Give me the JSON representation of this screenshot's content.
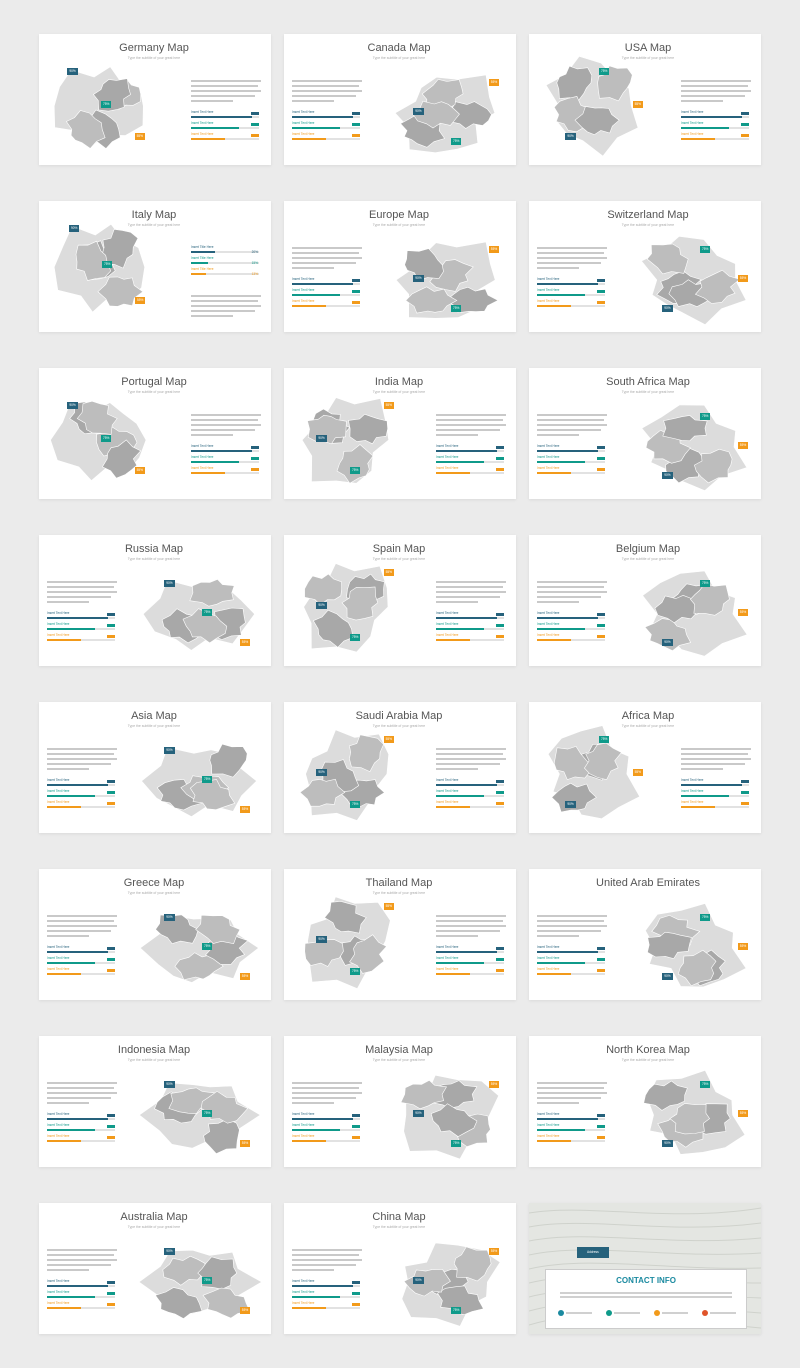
{
  "slides": [
    {
      "title": "Germany Map",
      "subtitle": "Type the subtitle of your great here",
      "layout": "map-left"
    },
    {
      "title": "Canada Map",
      "subtitle": "Type the subtitle of your great here",
      "layout": "map-right"
    },
    {
      "title": "USA Map",
      "subtitle": "Type the subtitle of your great here",
      "layout": "map-left"
    },
    {
      "title": "Italy Map",
      "subtitle": "Type the subtitle of your great here",
      "layout": "map-left"
    },
    {
      "title": "Europe Map",
      "subtitle": "Type the subtitle of your great here",
      "layout": "map-right"
    },
    {
      "title": "Switzerland Map",
      "subtitle": "Type the subtitle of your great here",
      "layout": "map-right"
    },
    {
      "title": "Portugal Map",
      "subtitle": "Type the subtitle of your great here",
      "layout": "map-left"
    },
    {
      "title": "India Map",
      "subtitle": "Type the subtitle of your great here",
      "layout": "map-left"
    },
    {
      "title": "South Africa Map",
      "subtitle": "Type the subtitle of your great here",
      "layout": "map-right"
    },
    {
      "title": "Russia Map",
      "subtitle": "Type the subtitle of your great here",
      "layout": "map-right"
    },
    {
      "title": "Spain Map",
      "subtitle": "Type the subtitle of your great here",
      "layout": "map-left"
    },
    {
      "title": "Belgium Map",
      "subtitle": "Type the subtitle of your great here",
      "layout": "map-right"
    },
    {
      "title": "Asia Map",
      "subtitle": "Type the subtitle of your great here",
      "layout": "map-right"
    },
    {
      "title": "Saudi Arabia Map",
      "subtitle": "Type the subtitle of your great here",
      "layout": "map-left"
    },
    {
      "title": "Africa Map",
      "subtitle": "Type the subtitle of your great here",
      "layout": "map-left"
    },
    {
      "title": "Greece Map",
      "subtitle": "Type the subtitle of your great here",
      "layout": "map-right"
    },
    {
      "title": "Thailand Map",
      "subtitle": "Type the subtitle of your great here",
      "layout": "map-left"
    },
    {
      "title": "United Arab Emirates",
      "subtitle": "",
      "layout": "map-right"
    },
    {
      "title": "Indonesia Map",
      "subtitle": "Type the subtitle of your great here",
      "layout": "map-right"
    },
    {
      "title": "Malaysia Map",
      "subtitle": "Type the subtitle of your great here",
      "layout": "map-right"
    },
    {
      "title": "North Korea Map",
      "subtitle": "Type the subtitle of your great here",
      "layout": "map-right"
    },
    {
      "title": "Australia Map",
      "subtitle": "Type the subtitle of your great here",
      "layout": "map-right"
    },
    {
      "title": "China Map",
      "subtitle": "Type the subtitle of your great here",
      "layout": "map-right"
    },
    {
      "title": "",
      "subtitle": "",
      "layout": "contact"
    }
  ],
  "bars": [
    {
      "label": "Insert Text Here",
      "value": 0.9,
      "color": "#26627c"
    },
    {
      "label": "Insert Text Here",
      "value": 0.7,
      "color": "#0f9a8a"
    },
    {
      "label": "Insert Text Here",
      "value": 0.5,
      "color": "#f29a1a"
    }
  ],
  "italy_bars": [
    {
      "label": "Insert Title Here",
      "pct": "20%",
      "value": 0.35,
      "color": "#26627c"
    },
    {
      "label": "Insert Title Here",
      "pct": "15%",
      "value": 0.25,
      "color": "#0f9a8a"
    },
    {
      "label": "Insert Title Here",
      "pct": "13%",
      "value": 0.22,
      "color": "#f29a1a"
    }
  ],
  "pins": [
    "90%",
    "75%",
    "55%",
    "60%"
  ],
  "contact": {
    "title": "CONTACT INFO",
    "tag": "Address"
  },
  "colors": {
    "teal": "#0f9a8a",
    "blue": "#26627c",
    "orange": "#f29a1a",
    "map": "#a8a8a8",
    "map_light": "#dcdcdc"
  }
}
